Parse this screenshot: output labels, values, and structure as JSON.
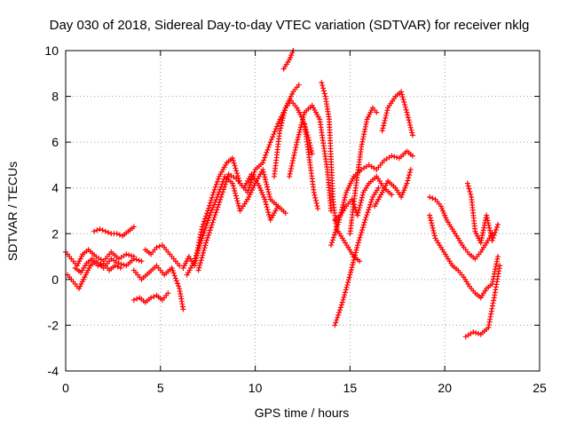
{
  "chart_data": {
    "type": "scatter",
    "title": "Day 030 of 2018, Sidereal Day-to-day VTEC variation (SDTVAR) for receiver nklg",
    "xlabel": "GPS time / hours",
    "ylabel": "SDTVAR / TECUs",
    "xlim": [
      0,
      25
    ],
    "ylim": [
      -4,
      10
    ],
    "x_ticks": [
      "0",
      "5",
      "10",
      "15",
      "20",
      "25"
    ],
    "y_ticks": [
      "-4",
      "-2",
      "0",
      "2",
      "4",
      "6",
      "8",
      "10"
    ],
    "grid": true,
    "marker": "+",
    "color": "#ff0000",
    "tracks": [
      {
        "x": [
          0.0,
          0.3,
          0.6,
          0.9,
          1.2,
          1.6,
          2.0,
          2.4,
          2.8,
          3.2,
          3.6
        ],
        "y": [
          1.2,
          0.9,
          0.6,
          1.1,
          1.3,
          1.0,
          0.8,
          1.2,
          0.9,
          1.1,
          1.0
        ]
      },
      {
        "x": [
          0.1,
          0.4,
          0.7,
          1.0,
          1.3,
          1.6,
          2.0,
          2.4,
          2.8,
          3.2,
          3.6,
          4.0
        ],
        "y": [
          0.2,
          -0.1,
          -0.4,
          0.1,
          0.6,
          0.8,
          0.5,
          0.9,
          0.7,
          0.6,
          0.9,
          0.8
        ]
      },
      {
        "x": [
          1.5,
          1.8,
          2.1,
          2.4,
          2.7,
          3.0,
          3.3,
          3.6
        ],
        "y": [
          2.1,
          2.2,
          2.1,
          2.0,
          2.0,
          1.9,
          2.1,
          2.3
        ]
      },
      {
        "x": [
          0.5,
          0.8,
          1.1,
          1.4,
          1.7,
          2.0,
          2.3,
          2.6,
          2.9
        ],
        "y": [
          0.5,
          0.3,
          0.7,
          0.9,
          0.6,
          0.7,
          0.4,
          0.6,
          0.5
        ]
      },
      {
        "x": [
          3.6,
          3.9,
          4.2,
          4.5,
          4.8,
          5.1,
          5.4
        ],
        "y": [
          -0.9,
          -0.8,
          -1.0,
          -0.8,
          -0.7,
          -0.9,
          -0.6
        ]
      },
      {
        "x": [
          3.6,
          4.0,
          4.4,
          4.8,
          5.2,
          5.6,
          6.0,
          6.2
        ],
        "y": [
          0.4,
          0.0,
          0.3,
          0.6,
          0.2,
          0.5,
          -0.4,
          -1.3
        ]
      },
      {
        "x": [
          4.2,
          4.5,
          4.8,
          5.1,
          5.4,
          5.7,
          6.0
        ],
        "y": [
          1.3,
          1.1,
          1.4,
          1.5,
          1.2,
          0.9,
          0.6
        ]
      },
      {
        "x": [
          6.2,
          6.5,
          6.8,
          7.0,
          7.2,
          7.5,
          7.8,
          8.1,
          8.5,
          8.8,
          9.2,
          9.6,
          10.0,
          10.4,
          10.8,
          11.2,
          11.6,
          12.0,
          12.3
        ],
        "y": [
          0.5,
          1.0,
          0.6,
          1.5,
          2.3,
          3.0,
          3.8,
          4.5,
          5.1,
          5.3,
          4.2,
          3.8,
          4.8,
          5.1,
          6.0,
          6.8,
          7.5,
          8.2,
          8.5
        ]
      },
      {
        "x": [
          6.4,
          6.8,
          7.2,
          7.6,
          8.0,
          8.4,
          8.8,
          9.2,
          9.6,
          10.0,
          10.4,
          10.8,
          11.2,
          11.6
        ],
        "y": [
          0.2,
          0.8,
          1.8,
          2.8,
          3.6,
          4.5,
          4.2,
          3.0,
          3.5,
          4.2,
          4.8,
          3.5,
          3.2,
          2.9
        ]
      },
      {
        "x": [
          7.0,
          7.4,
          7.8,
          8.2,
          8.6,
          9.0,
          9.4,
          9.8,
          10.2,
          10.5,
          10.8,
          11.2
        ],
        "y": [
          0.4,
          1.6,
          2.6,
          3.6,
          4.6,
          4.4,
          4.0,
          4.6,
          4.1,
          3.5,
          2.6,
          3.2
        ]
      },
      {
        "x": [
          11.5,
          11.8,
          12.0
        ],
        "y": [
          9.2,
          9.6,
          10.0
        ]
      },
      {
        "x": [
          11.0,
          11.3,
          11.6,
          11.9,
          12.2,
          12.5,
          12.8,
          13.0
        ],
        "y": [
          4.5,
          6.5,
          7.5,
          7.8,
          7.5,
          7.0,
          6.2,
          5.5
        ]
      },
      {
        "x": [
          11.8,
          12.2,
          12.6,
          13.0,
          13.4,
          13.8,
          14.0
        ],
        "y": [
          4.5,
          6.0,
          7.3,
          7.6,
          7.0,
          4.8,
          3.0
        ]
      },
      {
        "x": [
          12.6,
          12.9,
          13.1,
          13.3
        ],
        "y": [
          6.8,
          5.0,
          3.8,
          3.1
        ]
      },
      {
        "x": [
          13.5,
          13.7,
          13.9,
          14.1,
          14.3,
          14.6,
          14.9,
          15.2,
          15.5
        ],
        "y": [
          8.6,
          8.0,
          7.0,
          3.5,
          2.2,
          1.8,
          1.4,
          1.0,
          0.8
        ]
      },
      {
        "x": [
          14.0,
          14.4,
          14.8,
          15.2,
          15.6,
          16.0,
          16.4,
          16.8,
          17.2,
          17.6,
          18.0,
          18.3
        ],
        "y": [
          1.5,
          2.5,
          3.8,
          4.5,
          4.8,
          5.0,
          4.8,
          5.2,
          5.4,
          5.3,
          5.6,
          5.4
        ]
      },
      {
        "x": [
          14.2,
          14.5,
          14.8,
          15.1,
          15.4,
          15.7,
          16.0,
          16.4,
          16.8,
          17.2
        ],
        "y": [
          2.6,
          2.8,
          3.2,
          3.5,
          2.8,
          3.8,
          4.2,
          4.5,
          4.0,
          3.7
        ]
      },
      {
        "x": [
          14.2,
          14.6,
          15.0,
          15.4,
          15.8,
          16.2,
          16.5
        ],
        "y": [
          -2.0,
          -1.0,
          0.2,
          1.5,
          2.6,
          3.6,
          4.0
        ]
      },
      {
        "x": [
          15.0,
          15.3,
          15.6,
          15.9,
          16.2,
          16.4
        ],
        "y": [
          2.0,
          4.0,
          5.8,
          7.0,
          7.5,
          7.3
        ]
      },
      {
        "x": [
          16.3,
          16.7,
          17.0,
          17.4,
          17.7,
          18.0,
          18.2
        ],
        "y": [
          3.2,
          3.8,
          4.3,
          4.0,
          3.6,
          4.2,
          4.8
        ]
      },
      {
        "x": [
          16.7,
          17.0,
          17.4,
          17.7,
          18.0,
          18.3
        ],
        "y": [
          6.5,
          7.5,
          8.0,
          8.2,
          7.3,
          6.3
        ]
      },
      {
        "x": [
          19.2,
          19.5,
          19.8,
          20.1,
          20.4,
          20.7,
          21.0,
          21.3,
          21.6,
          21.9,
          22.2,
          22.5
        ],
        "y": [
          3.6,
          3.5,
          3.2,
          2.6,
          2.2,
          1.8,
          1.4,
          1.1,
          0.9,
          1.2,
          1.6,
          2.0
        ]
      },
      {
        "x": [
          19.2,
          19.5,
          19.8,
          20.1,
          20.4,
          20.7,
          21.0,
          21.3,
          21.6,
          21.9,
          22.2,
          22.5,
          22.8
        ],
        "y": [
          2.8,
          1.8,
          1.4,
          1.0,
          0.6,
          0.4,
          0.1,
          -0.3,
          -0.6,
          -0.8,
          -0.4,
          -0.2,
          1.0
        ]
      },
      {
        "x": [
          21.1,
          21.5,
          21.9,
          22.3,
          22.6,
          22.9
        ],
        "y": [
          -2.5,
          -2.3,
          -2.4,
          -2.1,
          -0.8,
          0.6
        ]
      },
      {
        "x": [
          21.2,
          21.4,
          21.6,
          21.9,
          22.2,
          22.5,
          22.8
        ],
        "y": [
          4.2,
          3.6,
          2.1,
          1.6,
          2.8,
          1.7,
          2.4
        ]
      }
    ]
  }
}
